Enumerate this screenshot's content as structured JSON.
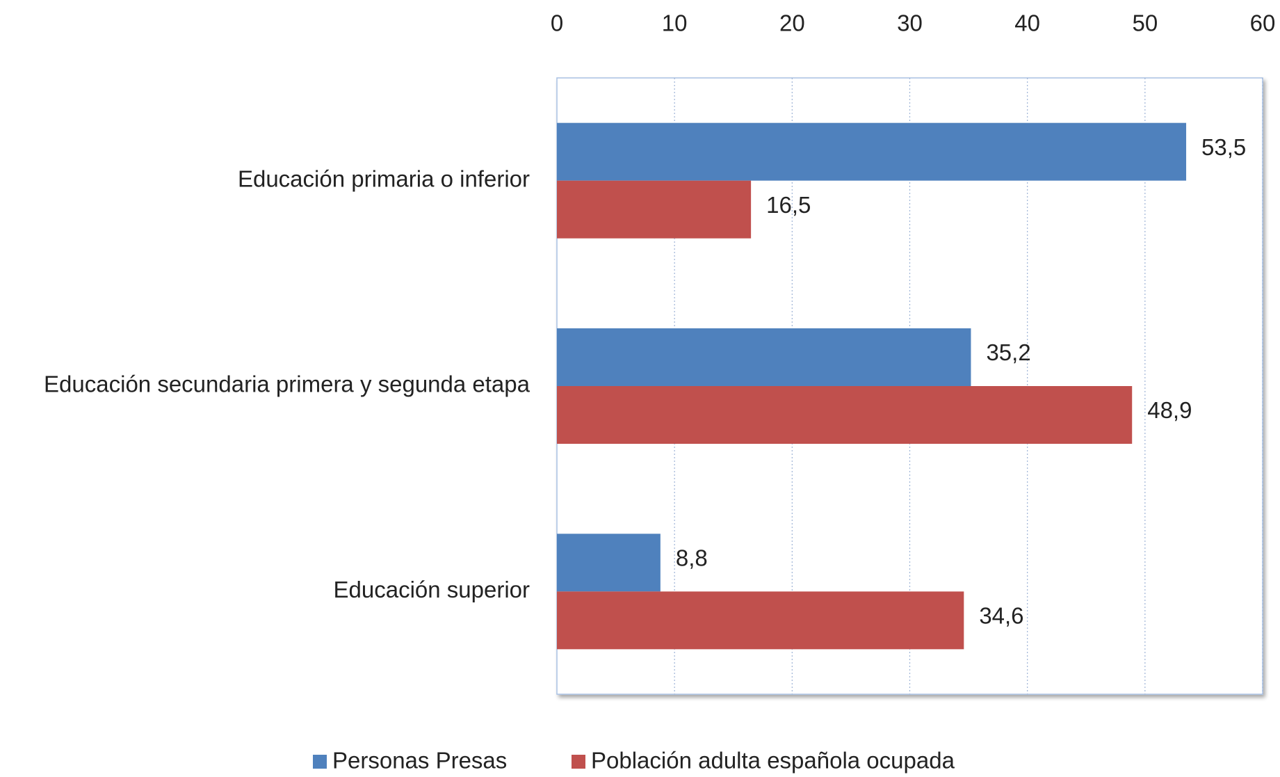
{
  "chart_data": {
    "type": "hbar",
    "categories": [
      "Educación primaria o inferior",
      "Educación secundaria primera y segunda etapa",
      "Educación superior"
    ],
    "series": [
      {
        "name": "Personas Presas",
        "color": "#4f81bd",
        "values": [
          53.5,
          35.2,
          8.8
        ],
        "value_labels": [
          "53,5",
          "35,2",
          "8,8"
        ]
      },
      {
        "name": "Población adulta española ocupada",
        "color": "#c0504d",
        "values": [
          16.5,
          48.9,
          34.6
        ],
        "value_labels": [
          "16,5",
          "48,9",
          "34,6"
        ]
      }
    ],
    "xlim": [
      0,
      60
    ],
    "xticks": [
      0,
      10,
      20,
      30,
      40,
      50,
      60
    ],
    "grid": true,
    "legend": "bottom"
  }
}
